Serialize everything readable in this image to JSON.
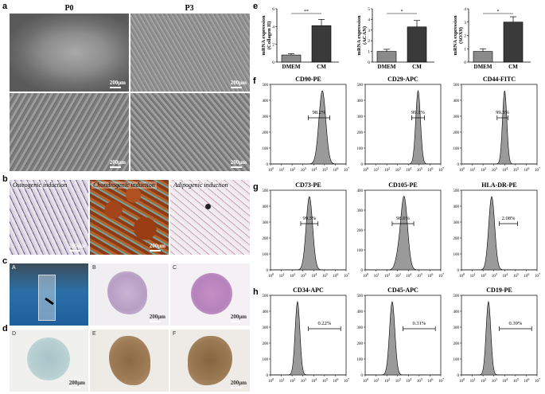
{
  "panel_letters": [
    "a",
    "b",
    "c",
    "d",
    "e",
    "f",
    "g",
    "h"
  ],
  "a": {
    "col_titles": [
      "P0",
      "P3"
    ],
    "scale": "200μm"
  },
  "b": {
    "labels": [
      "Osteogenic induction",
      "Chondrogenic induction",
      "Adipogenic induction"
    ],
    "scale": "200μm"
  },
  "c": {
    "letters": [
      "A",
      "B",
      "C"
    ],
    "scale": "200μm"
  },
  "d": {
    "letters": [
      "D",
      "E",
      "F"
    ],
    "scale": "200μm"
  },
  "colors": {
    "bar_dmem": "#8a8a8a",
    "bar_cm": "#3a3a3a",
    "hist_fill": "#9a9a9a"
  },
  "chart_data": [
    {
      "type": "bar",
      "categories": [
        "DMEM",
        "CM"
      ],
      "values": [
        0.8,
        4.1
      ],
      "errors": [
        0.15,
        0.7
      ],
      "ylabel": "mRNA expression (Collagen II)",
      "ylim": [
        0,
        6
      ],
      "yticks": [
        "0",
        "2",
        "4",
        "6"
      ],
      "significance": "**"
    },
    {
      "type": "bar",
      "categories": [
        "DMEM",
        "CM"
      ],
      "values": [
        1.0,
        3.3
      ],
      "errors": [
        0.2,
        0.6
      ],
      "ylabel": "mRNA expression (ACAN)",
      "ylim": [
        0,
        5
      ],
      "yticks": [
        "0",
        "1",
        "2",
        "3",
        "4",
        "5"
      ],
      "significance": "*"
    },
    {
      "type": "bar",
      "categories": [
        "DMEM",
        "CM"
      ],
      "values": [
        0.8,
        3.0
      ],
      "errors": [
        0.2,
        0.4
      ],
      "ylabel": "mRNA expression (SOX9)",
      "ylim": [
        0,
        4
      ],
      "yticks": [
        "0",
        "1",
        "2",
        "3",
        "4"
      ],
      "significance": "*"
    },
    {
      "type": "area",
      "title": "CD90-PE",
      "peak": 4.8,
      "width": 0.32,
      "gate": [
        3.5,
        5.5
      ],
      "gate_label": "98.2%",
      "ylim": [
        0,
        500
      ]
    },
    {
      "type": "area",
      "title": "CD29-APC",
      "peak": 4.9,
      "width": 0.22,
      "gate": [
        4.3,
        5.5
      ],
      "gate_label": "99.1%",
      "ylim": [
        0,
        500
      ]
    },
    {
      "type": "area",
      "title": "CD44-FITC",
      "peak": 4.0,
      "width": 0.2,
      "gate": [
        3.3,
        4.3
      ],
      "gate_label": "99.3%",
      "ylim": [
        0,
        500
      ]
    },
    {
      "type": "area",
      "title": "CD73-PE",
      "peak": 3.6,
      "width": 0.3,
      "gate": [
        2.8,
        4.4
      ],
      "gate_label": "99.3%",
      "ylim": [
        0,
        500
      ]
    },
    {
      "type": "area",
      "title": "CD105-PE",
      "peak": 3.6,
      "width": 0.32,
      "gate": [
        2.5,
        4.5
      ],
      "gate_label": "98.6%",
      "ylim": [
        0,
        400
      ]
    },
    {
      "type": "area",
      "title": "HLA-DR-PE",
      "peak": 2.8,
      "width": 0.28,
      "gate": [
        3.5,
        5.2
      ],
      "gate_label": "2.08%",
      "ylim": [
        0,
        500
      ]
    },
    {
      "type": "area",
      "title": "CD34-APC",
      "peak": 2.5,
      "width": 0.22,
      "gate": [
        3.5,
        6.5
      ],
      "gate_label": "0.22%",
      "ylim": [
        0,
        500
      ]
    },
    {
      "type": "area",
      "title": "CD45-APC",
      "peak": 2.5,
      "width": 0.25,
      "gate": [
        3.5,
        6.5
      ],
      "gate_label": "0.31%",
      "ylim": [
        0,
        500
      ]
    },
    {
      "type": "area",
      "title": "CD19-PE",
      "peak": 2.5,
      "width": 0.22,
      "gate": [
        3.5,
        6.5
      ],
      "gate_label": "0.39%",
      "ylim": [
        0,
        500
      ]
    }
  ]
}
